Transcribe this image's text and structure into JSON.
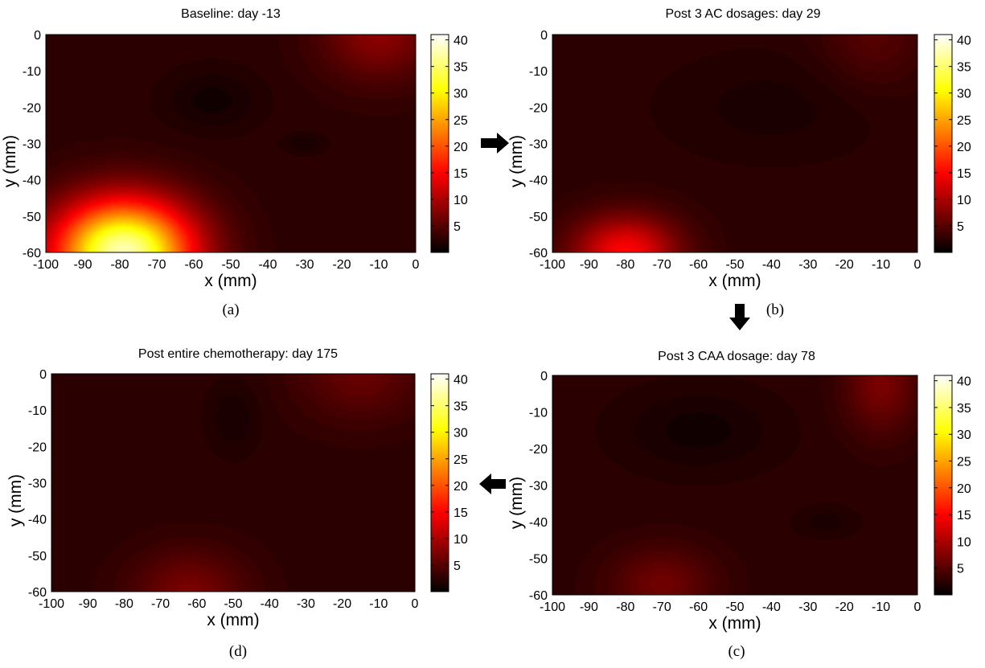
{
  "chart_data": [
    {
      "type": "heatmap",
      "panel": "(a)",
      "title": "Baseline: day -13",
      "xlabel": "x (mm)",
      "ylabel": "y (mm)",
      "xlim": [
        -100,
        0
      ],
      "ylim": [
        -60,
        0
      ],
      "x_ticks": [
        -100,
        -90,
        -80,
        -70,
        -60,
        -50,
        -40,
        -30,
        -20,
        -10,
        0
      ],
      "y_ticks": [
        0,
        -10,
        -20,
        -30,
        -40,
        -50,
        -60
      ],
      "colorbar": {
        "min": 0,
        "max": 41,
        "ticks": [
          5,
          10,
          15,
          20,
          25,
          30,
          35,
          40
        ],
        "colormap": "hot"
      },
      "background": 2.5,
      "hotspots": [
        {
          "x": -79,
          "y": -60,
          "peak": 38,
          "sx": 13,
          "sy": 10
        },
        {
          "x": -10,
          "y": 0,
          "peak": 8,
          "sx": 11,
          "sy": 9
        }
      ],
      "lowspots": [
        {
          "x": -55,
          "y": -18,
          "depth": 1.5,
          "sx": 9,
          "sy": 6
        },
        {
          "x": -30,
          "y": -30,
          "depth": 1.2,
          "sx": 4,
          "sy": 2
        }
      ]
    },
    {
      "type": "heatmap",
      "panel": "(b)",
      "title": "Post 3 AC dosages: day 29",
      "xlabel": "x (mm)",
      "ylabel": "y (mm)",
      "xlim": [
        -100,
        0
      ],
      "ylim": [
        -60,
        0
      ],
      "x_ticks": [
        -100,
        -90,
        -80,
        -70,
        -60,
        -50,
        -40,
        -30,
        -20,
        -10,
        0
      ],
      "y_ticks": [
        0,
        -10,
        -20,
        -30,
        -40,
        -50,
        -60
      ],
      "colorbar": {
        "min": 0,
        "max": 41,
        "ticks": [
          5,
          10,
          15,
          20,
          25,
          30,
          35,
          40
        ],
        "colormap": "hot"
      },
      "background": 2.5,
      "hotspots": [
        {
          "x": -80,
          "y": -60,
          "peak": 15,
          "sx": 10,
          "sy": 7
        },
        {
          "x": -12,
          "y": 0,
          "peak": 5,
          "sx": 10,
          "sy": 10
        }
      ],
      "lowspots": [
        {
          "x": -40,
          "y": -20,
          "depth": 1.0,
          "sx": 20,
          "sy": 10
        }
      ]
    },
    {
      "type": "heatmap",
      "panel": "(c)",
      "title": "Post 3 CAA dosage: day 78",
      "xlabel": "x (mm)",
      "ylabel": "y (mm)",
      "xlim": [
        -100,
        0
      ],
      "ylim": [
        -60,
        0
      ],
      "x_ticks": [
        -100,
        -90,
        -80,
        -70,
        -60,
        -50,
        -40,
        -30,
        -20,
        -10,
        0
      ],
      "y_ticks": [
        0,
        -10,
        -20,
        -30,
        -40,
        -50,
        -60
      ],
      "colorbar": {
        "min": 0,
        "max": 41,
        "ticks": [
          5,
          10,
          15,
          20,
          25,
          30,
          35,
          40
        ],
        "colormap": "hot"
      },
      "background": 2.5,
      "hotspots": [
        {
          "x": -70,
          "y": -57,
          "peak": 6.5,
          "sx": 10,
          "sy": 7
        },
        {
          "x": -10,
          "y": -3,
          "peak": 7,
          "sx": 7,
          "sy": 9
        }
      ],
      "lowspots": [
        {
          "x": -60,
          "y": -15,
          "depth": 1.5,
          "sx": 15,
          "sy": 8
        },
        {
          "x": -25,
          "y": -40,
          "depth": 1.0,
          "sx": 6,
          "sy": 3
        }
      ]
    },
    {
      "type": "heatmap",
      "panel": "(d)",
      "title": "Post entire chemotherapy: day 175",
      "xlabel": "x (mm)",
      "ylabel": "y (mm)",
      "xlim": [
        -100,
        0
      ],
      "ylim": [
        -60,
        0
      ],
      "x_ticks": [
        -100,
        -90,
        -80,
        -70,
        -60,
        -50,
        -40,
        -30,
        -20,
        -10,
        0
      ],
      "y_ticks": [
        0,
        -10,
        -20,
        -30,
        -40,
        -50,
        -60
      ],
      "colorbar": {
        "min": 0,
        "max": 41,
        "ticks": [
          5,
          10,
          15,
          20,
          25,
          30,
          35,
          40
        ],
        "colormap": "hot"
      },
      "background": 2.5,
      "hotspots": [
        {
          "x": -62,
          "y": -60,
          "peak": 7,
          "sx": 11,
          "sy": 8
        },
        {
          "x": -15,
          "y": 0,
          "peak": 6,
          "sx": 12,
          "sy": 9
        }
      ],
      "lowspots": [
        {
          "x": -50,
          "y": -12,
          "depth": 1.2,
          "sx": 5,
          "sy": 7
        }
      ]
    }
  ],
  "arrows": [
    "right",
    "down",
    "left"
  ]
}
